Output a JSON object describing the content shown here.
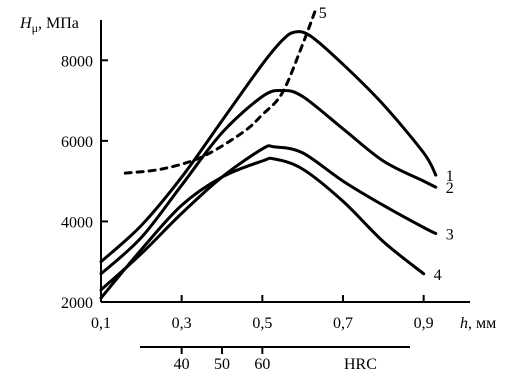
{
  "chart_data": {
    "type": "line",
    "ylabel_symbol": "H",
    "ylabel_sub": "μ",
    "ylabel_unit": ", МПа",
    "xlabel_symbol": "h",
    "xlabel_unit": ", мм",
    "xlim": [
      0.1,
      1.0
    ],
    "ylim": [
      2000,
      9000
    ],
    "x_ticks": [
      {
        "v": 0.1,
        "label": "0,1"
      },
      {
        "v": 0.3,
        "label": "0,3"
      },
      {
        "v": 0.5,
        "label": "0,5"
      },
      {
        "v": 0.7,
        "label": "0,7"
      },
      {
        "v": 0.9,
        "label": "0,9"
      }
    ],
    "y_ticks": [
      {
        "v": 2000,
        "label": "2000"
      },
      {
        "v": 4000,
        "label": "4000"
      },
      {
        "v": 6000,
        "label": "6000"
      },
      {
        "v": 8000,
        "label": "8000"
      }
    ],
    "secondary_axis": {
      "unit": "HRC",
      "ticks": [
        {
          "x": 0.3,
          "label": "40"
        },
        {
          "x": 0.4,
          "label": "50"
        },
        {
          "x": 0.5,
          "label": "60"
        }
      ]
    },
    "series": [
      {
        "name": "1",
        "style": "solid",
        "x": [
          0.1,
          0.2,
          0.3,
          0.4,
          0.5,
          0.55,
          0.58,
          0.62,
          0.7,
          0.8,
          0.9,
          0.93
        ],
        "y": [
          3000,
          3900,
          5100,
          6500,
          7900,
          8500,
          8700,
          8600,
          7900,
          6900,
          5700,
          5150
        ]
      },
      {
        "name": "2",
        "style": "solid",
        "x": [
          0.1,
          0.2,
          0.3,
          0.4,
          0.5,
          0.55,
          0.6,
          0.7,
          0.8,
          0.9,
          0.93
        ],
        "y": [
          2700,
          3600,
          4900,
          6200,
          7100,
          7250,
          7100,
          6300,
          5500,
          5000,
          4850
        ]
      },
      {
        "name": "3",
        "style": "solid",
        "x": [
          0.1,
          0.2,
          0.3,
          0.4,
          0.5,
          0.53,
          0.6,
          0.7,
          0.8,
          0.9,
          0.93
        ],
        "y": [
          2300,
          3200,
          4200,
          5100,
          5800,
          5850,
          5700,
          5000,
          4400,
          3850,
          3700
        ]
      },
      {
        "name": "4",
        "style": "solid",
        "x": [
          0.1,
          0.2,
          0.3,
          0.4,
          0.5,
          0.53,
          0.6,
          0.7,
          0.8,
          0.9
        ],
        "y": [
          2100,
          3300,
          4400,
          5100,
          5500,
          5550,
          5300,
          4500,
          3500,
          2700
        ]
      },
      {
        "name": "5",
        "style": "dashed",
        "x": [
          0.16,
          0.25,
          0.35,
          0.45,
          0.5,
          0.55,
          0.6,
          0.63
        ],
        "y": [
          5200,
          5300,
          5600,
          6200,
          6650,
          7200,
          8400,
          9200
        ]
      }
    ]
  }
}
